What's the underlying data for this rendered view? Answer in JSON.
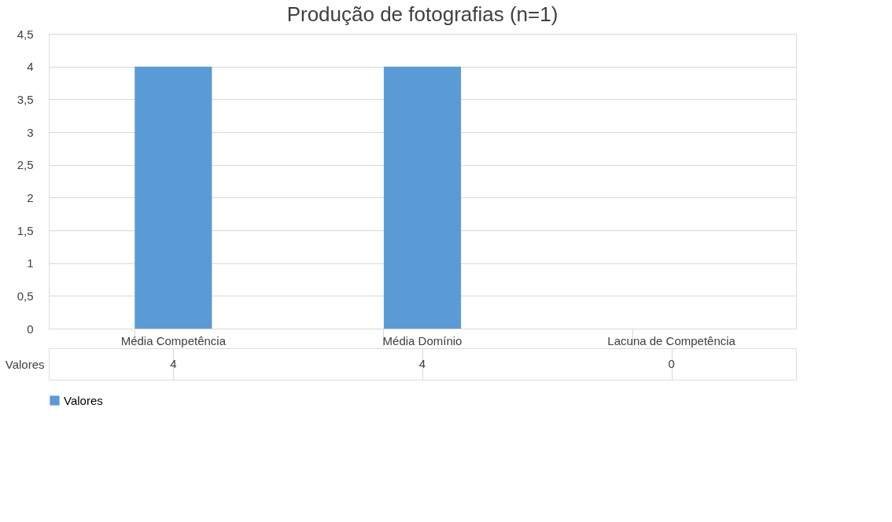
{
  "chart_data": {
    "type": "bar",
    "title": "Produção de fotografias (n=1)",
    "categories": [
      "Média Competência",
      "Média Domínio",
      "Lacuna de Competência"
    ],
    "series": [
      {
        "name": "Valores",
        "color": "#5b9bd5",
        "values": [
          4,
          4,
          0
        ]
      }
    ],
    "ylim": [
      0,
      4.5
    ],
    "yticks": [
      0,
      {
        "value": 0.5,
        "label": "0,5"
      },
      1,
      {
        "value": 1.5,
        "label": "1,5"
      },
      2,
      {
        "value": 2.5,
        "label": "2,5"
      },
      3,
      {
        "value": 3.5,
        "label": "3,5"
      },
      4,
      {
        "value": 4.5,
        "label": "4,5"
      }
    ],
    "grid": "y",
    "legend": "bottom",
    "data_labels": true
  }
}
